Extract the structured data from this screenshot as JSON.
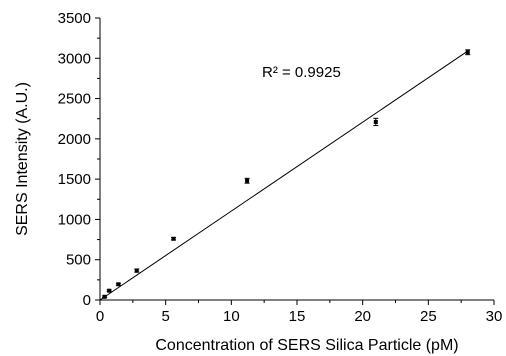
{
  "chart_data": {
    "type": "scatter",
    "title": "",
    "xlabel": "Concentration of SERS Silica Particle (pM)",
    "ylabel": "SERS Intensity (A.U.)",
    "xlim": [
      0,
      30
    ],
    "ylim": [
      0,
      3500
    ],
    "xticks": [
      0,
      5,
      10,
      15,
      20,
      25,
      30
    ],
    "yticks": [
      0,
      500,
      1000,
      1500,
      2000,
      2500,
      3000,
      3500
    ],
    "grid": false,
    "legend": "none",
    "series": [
      {
        "points": [
          {
            "x": 0.35,
            "y": 40,
            "err": 10
          },
          {
            "x": 0.7,
            "y": 115,
            "err": 10
          },
          {
            "x": 1.4,
            "y": 195,
            "err": 12
          },
          {
            "x": 2.8,
            "y": 365,
            "err": 20
          },
          {
            "x": 5.6,
            "y": 760,
            "err": 15
          },
          {
            "x": 11.2,
            "y": 1480,
            "err": 30
          },
          {
            "x": 21.0,
            "y": 2210,
            "err": 45
          },
          {
            "x": 28.0,
            "y": 3075,
            "err": 30
          }
        ]
      }
    ],
    "fit_line": {
      "x": [
        0,
        28
      ],
      "y": [
        0,
        3090
      ]
    },
    "annotation": "R² = 0.9925",
    "colors": {
      "marker": "#000000",
      "line": "#000000",
      "axis": "#000000"
    }
  }
}
